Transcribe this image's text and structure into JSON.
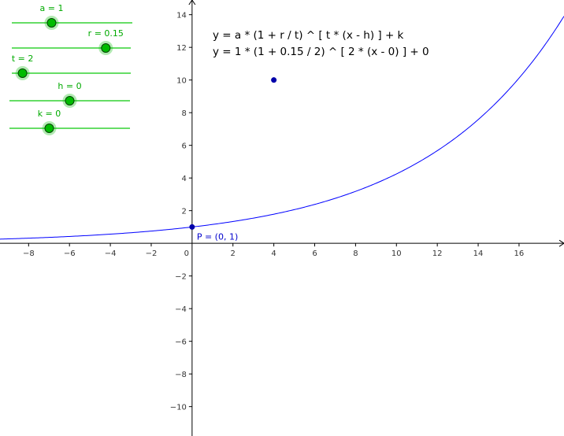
{
  "colors": {
    "curve": "#0000ff",
    "point": "#0000aa",
    "slider_line": "#66dd66",
    "slider_knob": "#00bb00",
    "slider_text": "#00aa00",
    "axis": "#000000"
  },
  "sliders": [
    {
      "name": "a",
      "label": "a = 1",
      "fraction": 0.33
    },
    {
      "name": "r",
      "label": "r = 0.15",
      "fraction": 0.79
    },
    {
      "name": "t",
      "label": "t = 2",
      "fraction": 0.09
    },
    {
      "name": "h",
      "label": "h = 0",
      "fraction": 0.5
    },
    {
      "name": "k",
      "label": "k = 0",
      "fraction": 0.33
    }
  ],
  "formula": {
    "general": "y = a * (1 + r / t) ^ [ t * (x - h) ]  +  k",
    "specific": "y = 1 * (1 +  0.15 / 2) ^ [ 2 * (x - 0) ] + 0"
  },
  "point_p": {
    "label": "P = (0, 1)",
    "x": 0,
    "y": 1
  },
  "extra_point": {
    "x": 4,
    "y": 10
  },
  "chart_data": {
    "type": "line",
    "function": {
      "a": 1,
      "r": 0.15,
      "t": 2,
      "h": 0,
      "k": 0
    },
    "xlim": [
      -9.4,
      18.2
    ],
    "ylim": [
      -11.8,
      14.9
    ],
    "x_ticks": [
      "−8",
      "−6",
      "−4",
      "−2",
      "0",
      "2",
      "4",
      "6",
      "8",
      "10",
      "12",
      "14",
      "16"
    ],
    "x_tick_values": [
      -8,
      -6,
      -4,
      -2,
      0,
      2,
      4,
      6,
      8,
      10,
      12,
      14,
      16
    ],
    "y_ticks": [
      "14",
      "12",
      "10",
      "8",
      "6",
      "4",
      "2",
      "−2",
      "−4",
      "−6",
      "−8",
      "−10"
    ],
    "y_tick_values": [
      14,
      12,
      10,
      8,
      6,
      4,
      2,
      -2,
      -4,
      -6,
      -8,
      -10
    ],
    "grid": false
  }
}
